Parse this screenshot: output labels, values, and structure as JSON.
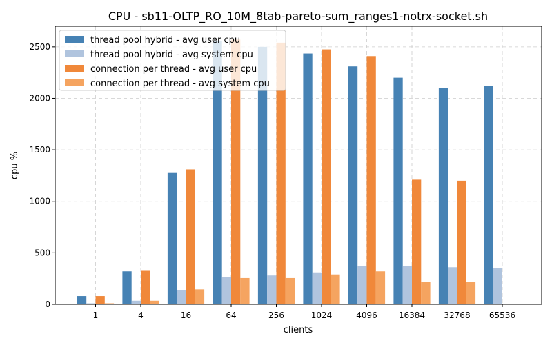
{
  "chart_data": {
    "type": "bar",
    "title": "CPU - sb11-OLTP_RO_10M_8tab-pareto-sum_ranges1-notrx-socket.sh",
    "xlabel": "clients",
    "ylabel": "cpu %",
    "ylim": [
      0,
      2700
    ],
    "yticks": [
      0,
      500,
      1000,
      1500,
      2000,
      2500
    ],
    "grid": true,
    "legend_position": "top-left",
    "categories": [
      "1",
      "4",
      "16",
      "64",
      "256",
      "1024",
      "4096",
      "16384",
      "32768",
      "65536"
    ],
    "series": [
      {
        "name": "thread pool hybrid - avg user cpu",
        "color": "#4682b4",
        "values": [
          80,
          320,
          1275,
          2560,
          2500,
          2435,
          2310,
          2200,
          2100,
          2120
        ]
      },
      {
        "name": "thread pool hybrid - avg system cpu",
        "color": "#b0c4de",
        "values": [
          10,
          35,
          135,
          265,
          280,
          310,
          375,
          375,
          360,
          355
        ]
      },
      {
        "name": "connection per thread - avg user cpu",
        "color": "#f0883a",
        "values": [
          80,
          325,
          1310,
          2570,
          2540,
          2475,
          2410,
          1210,
          1200,
          null
        ]
      },
      {
        "name": "connection per thread - avg system cpu",
        "color": "#f5a460",
        "values": [
          10,
          35,
          145,
          255,
          255,
          290,
          320,
          220,
          220,
          null
        ]
      }
    ]
  }
}
